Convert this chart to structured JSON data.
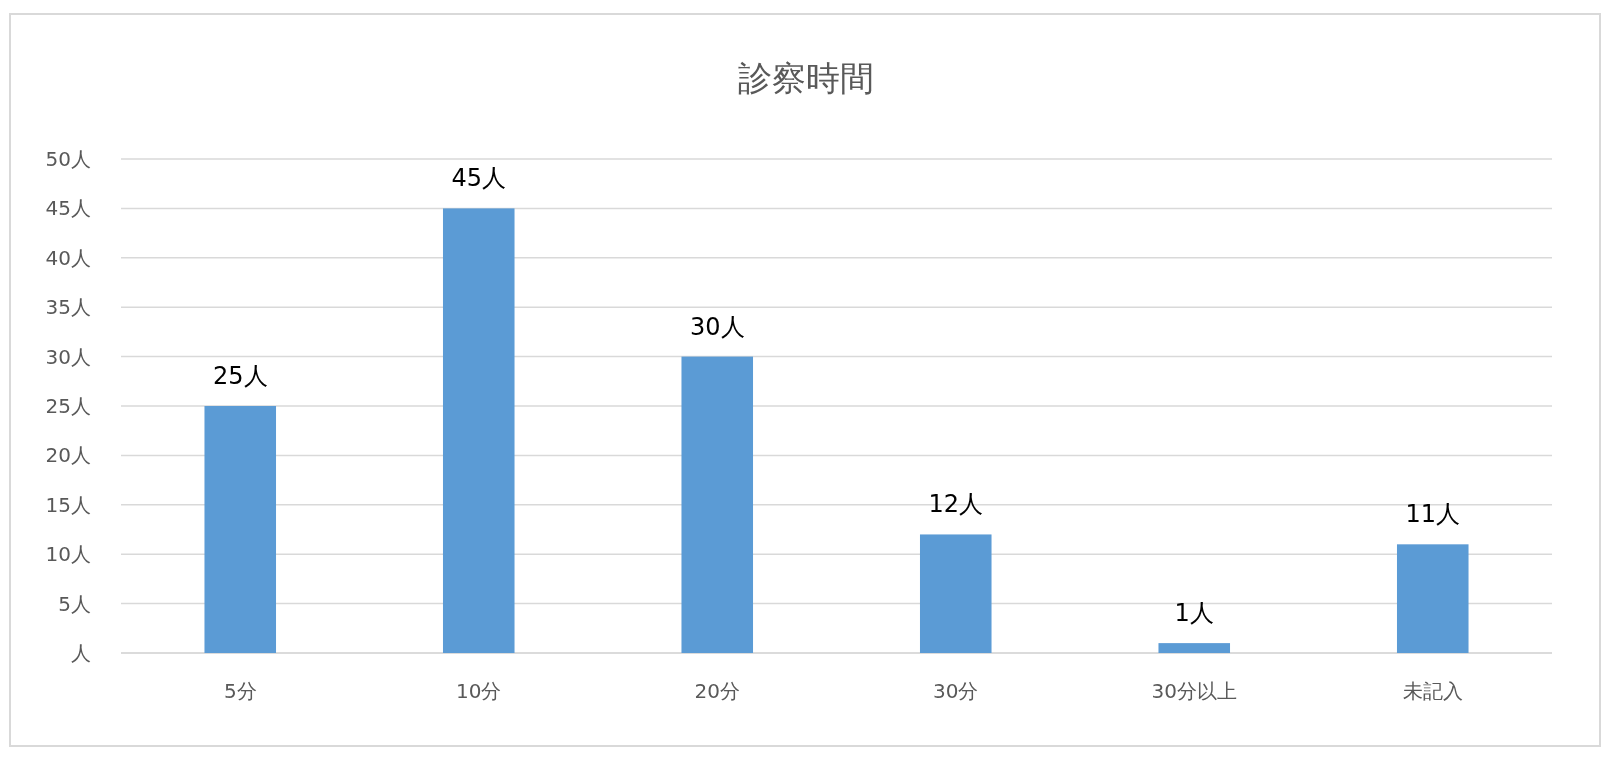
{
  "chart_data": {
    "type": "bar",
    "title": "診察時間",
    "categories": [
      "5分",
      "10分",
      "20分",
      "30分",
      "30分以上",
      "未記入"
    ],
    "series": [
      {
        "color": "#5b9bd5",
        "values": [
          25,
          45,
          30,
          12,
          1,
          11
        ],
        "value_labels": [
          "25人",
          "45人",
          "30人",
          "12人",
          "1人",
          "11人"
        ]
      }
    ],
    "ylim": [
      0,
      50
    ],
    "yticks": [
      {
        "value": 0,
        "label": "人"
      },
      {
        "value": 5,
        "label": "5人"
      },
      {
        "value": 10,
        "label": "10人"
      },
      {
        "value": 15,
        "label": "15人"
      },
      {
        "value": 20,
        "label": "20人"
      },
      {
        "value": 25,
        "label": "25人"
      },
      {
        "value": 30,
        "label": "30人"
      },
      {
        "value": 35,
        "label": "35人"
      },
      {
        "value": 40,
        "label": "40人"
      },
      {
        "value": 45,
        "label": "45人"
      },
      {
        "value": 50,
        "label": "50人"
      }
    ],
    "grid": "y"
  }
}
